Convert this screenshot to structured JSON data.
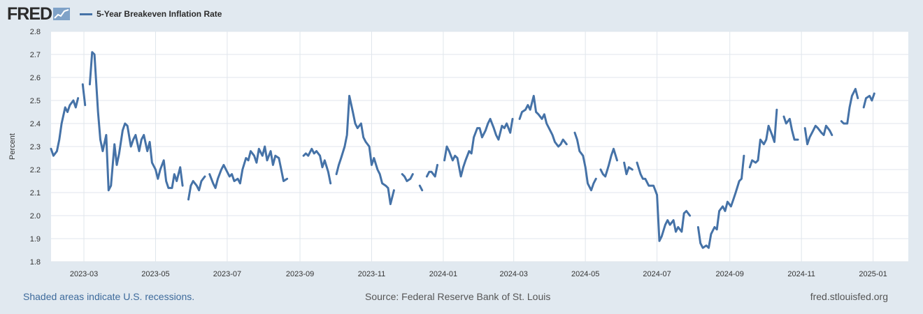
{
  "header": {
    "logo_text": "FRED",
    "logo_icon": "trend-chart-icon"
  },
  "footer": {
    "recessions_note": "Shaded areas indicate U.S. recessions.",
    "source": "Source: Federal Reserve Bank of St. Louis",
    "site": "fred.stlouisfed.org"
  },
  "colors": {
    "series": "#4572a7",
    "background": "#e1e9f0",
    "plot": "#ffffff",
    "grid": "#e0e6ec",
    "text": "#333333"
  },
  "chart_data": {
    "type": "line",
    "title": "",
    "xlabel": "",
    "ylabel": "Percent",
    "ylim": [
      1.8,
      2.8
    ],
    "yticks": [
      "1.8",
      "1.9",
      "2.0",
      "2.1",
      "2.2",
      "2.3",
      "2.4",
      "2.5",
      "2.6",
      "2.7",
      "2.8"
    ],
    "xlim": [
      "2023-02-01",
      "2025-01-31"
    ],
    "xticks": [
      "2023-03",
      "2023-05",
      "2023-07",
      "2023-09",
      "2023-11",
      "2024-01",
      "2024-03",
      "2024-05",
      "2024-07",
      "2024-09",
      "2024-11",
      "2025-01"
    ],
    "grid": true,
    "legend": "top-left",
    "series": [
      {
        "name": "5-Year Breakeven Inflation Rate",
        "color": "#4572a7",
        "points": [
          [
            "2023-02-01",
            2.29
          ],
          [
            "2023-02-03",
            2.26
          ],
          [
            "2023-02-06",
            2.28
          ],
          [
            "2023-02-08",
            2.33
          ],
          [
            "2023-02-10",
            2.4
          ],
          [
            "2023-02-13",
            2.47
          ],
          [
            "2023-02-15",
            2.45
          ],
          [
            "2023-02-17",
            2.48
          ],
          [
            "2023-02-20",
            2.5
          ],
          [
            "2023-02-22",
            2.47
          ],
          [
            "2023-02-24",
            2.51
          ],
          [
            "2023-02-28",
            2.57
          ],
          [
            "2023-03-02",
            2.48
          ],
          [
            "2023-03-06",
            2.57
          ],
          [
            "2023-03-08",
            2.71
          ],
          [
            "2023-03-10",
            2.7
          ],
          [
            "2023-03-13",
            2.45
          ],
          [
            "2023-03-15",
            2.33
          ],
          [
            "2023-03-17",
            2.28
          ],
          [
            "2023-03-20",
            2.35
          ],
          [
            "2023-03-22",
            2.11
          ],
          [
            "2023-03-24",
            2.13
          ],
          [
            "2023-03-27",
            2.31
          ],
          [
            "2023-03-29",
            2.22
          ],
          [
            "2023-03-31",
            2.27
          ],
          [
            "2023-04-03",
            2.37
          ],
          [
            "2023-04-05",
            2.4
          ],
          [
            "2023-04-07",
            2.39
          ],
          [
            "2023-04-10",
            2.3
          ],
          [
            "2023-04-12",
            2.33
          ],
          [
            "2023-04-14",
            2.35
          ],
          [
            "2023-04-17",
            2.28
          ],
          [
            "2023-04-19",
            2.33
          ],
          [
            "2023-04-21",
            2.35
          ],
          [
            "2023-04-24",
            2.28
          ],
          [
            "2023-04-26",
            2.32
          ],
          [
            "2023-04-28",
            2.23
          ],
          [
            "2023-05-01",
            2.2
          ],
          [
            "2023-05-03",
            2.16
          ],
          [
            "2023-05-05",
            2.2
          ],
          [
            "2023-05-08",
            2.24
          ],
          [
            "2023-05-10",
            2.15
          ],
          [
            "2023-05-12",
            2.12
          ],
          [
            "2023-05-15",
            2.12
          ],
          [
            "2023-05-17",
            2.18
          ],
          [
            "2023-05-19",
            2.15
          ],
          [
            "2023-05-22",
            2.21
          ],
          [
            "2023-05-24",
            2.13
          ],
          [
            "2023-05-29",
            2.07
          ],
          [
            "2023-05-31",
            2.13
          ],
          [
            "2023-06-02",
            2.15
          ],
          [
            "2023-06-05",
            2.13
          ],
          [
            "2023-06-07",
            2.11
          ],
          [
            "2023-06-09",
            2.15
          ],
          [
            "2023-06-12",
            2.17
          ],
          [
            "2023-06-16",
            2.18
          ],
          [
            "2023-06-19",
            2.14
          ],
          [
            "2023-06-21",
            2.12
          ],
          [
            "2023-06-23",
            2.16
          ],
          [
            "2023-06-26",
            2.2
          ],
          [
            "2023-06-28",
            2.22
          ],
          [
            "2023-06-30",
            2.2
          ],
          [
            "2023-07-03",
            2.17
          ],
          [
            "2023-07-05",
            2.18
          ],
          [
            "2023-07-07",
            2.15
          ],
          [
            "2023-07-10",
            2.16
          ],
          [
            "2023-07-12",
            2.14
          ],
          [
            "2023-07-14",
            2.2
          ],
          [
            "2023-07-17",
            2.25
          ],
          [
            "2023-07-19",
            2.24
          ],
          [
            "2023-07-21",
            2.28
          ],
          [
            "2023-07-24",
            2.26
          ],
          [
            "2023-07-26",
            2.23
          ],
          [
            "2023-07-28",
            2.29
          ],
          [
            "2023-07-31",
            2.26
          ],
          [
            "2023-08-02",
            2.3
          ],
          [
            "2023-08-04",
            2.24
          ],
          [
            "2023-08-07",
            2.28
          ],
          [
            "2023-08-09",
            2.22
          ],
          [
            "2023-08-11",
            2.26
          ],
          [
            "2023-08-14",
            2.25
          ],
          [
            "2023-08-16",
            2.2
          ],
          [
            "2023-08-18",
            2.15
          ],
          [
            "2023-08-21",
            2.16
          ],
          [
            "2023-08-31",
            2.22
          ],
          [
            "2023-09-04",
            2.26
          ],
          [
            "2023-09-06",
            2.27
          ],
          [
            "2023-09-08",
            2.26
          ],
          [
            "2023-09-11",
            2.29
          ],
          [
            "2023-09-13",
            2.27
          ],
          [
            "2023-09-15",
            2.28
          ],
          [
            "2023-09-18",
            2.26
          ],
          [
            "2023-09-20",
            2.21
          ],
          [
            "2023-09-22",
            2.24
          ],
          [
            "2023-09-25",
            2.19
          ],
          [
            "2023-09-27",
            2.14
          ],
          [
            "2023-10-02",
            2.18
          ],
          [
            "2023-10-04",
            2.22
          ],
          [
            "2023-10-06",
            2.25
          ],
          [
            "2023-10-09",
            2.3
          ],
          [
            "2023-10-11",
            2.35
          ],
          [
            "2023-10-13",
            2.52
          ],
          [
            "2023-10-16",
            2.45
          ],
          [
            "2023-10-18",
            2.4
          ],
          [
            "2023-10-20",
            2.38
          ],
          [
            "2023-10-23",
            2.4
          ],
          [
            "2023-10-25",
            2.34
          ],
          [
            "2023-10-27",
            2.32
          ],
          [
            "2023-10-30",
            2.3
          ],
          [
            "2023-11-01",
            2.22
          ],
          [
            "2023-11-03",
            2.25
          ],
          [
            "2023-11-06",
            2.2
          ],
          [
            "2023-11-08",
            2.18
          ],
          [
            "2023-11-10",
            2.14
          ],
          [
            "2023-11-13",
            2.13
          ],
          [
            "2023-11-15",
            2.12
          ],
          [
            "2023-11-17",
            2.05
          ],
          [
            "2023-11-20",
            2.11
          ],
          [
            "2023-11-27",
            2.18
          ],
          [
            "2023-11-29",
            2.17
          ],
          [
            "2023-12-01",
            2.15
          ],
          [
            "2023-12-04",
            2.16
          ],
          [
            "2023-12-06",
            2.18
          ],
          [
            "2023-12-12",
            2.13
          ],
          [
            "2023-12-14",
            2.11
          ],
          [
            "2023-12-18",
            2.17
          ],
          [
            "2023-12-20",
            2.19
          ],
          [
            "2023-12-22",
            2.19
          ],
          [
            "2023-12-25",
            2.17
          ],
          [
            "2023-12-27",
            2.22
          ],
          [
            "2024-01-02",
            2.24
          ],
          [
            "2024-01-04",
            2.3
          ],
          [
            "2024-01-06",
            2.28
          ],
          [
            "2024-01-09",
            2.24
          ],
          [
            "2024-01-11",
            2.26
          ],
          [
            "2024-01-13",
            2.25
          ],
          [
            "2024-01-16",
            2.17
          ],
          [
            "2024-01-18",
            2.21
          ],
          [
            "2024-01-20",
            2.24
          ],
          [
            "2024-01-23",
            2.28
          ],
          [
            "2024-01-25",
            2.27
          ],
          [
            "2024-01-27",
            2.34
          ],
          [
            "2024-01-30",
            2.38
          ],
          [
            "2024-02-01",
            2.38
          ],
          [
            "2024-02-03",
            2.34
          ],
          [
            "2024-02-06",
            2.37
          ],
          [
            "2024-02-08",
            2.4
          ],
          [
            "2024-02-10",
            2.42
          ],
          [
            "2024-02-13",
            2.38
          ],
          [
            "2024-02-15",
            2.35
          ],
          [
            "2024-02-17",
            2.33
          ],
          [
            "2024-02-20",
            2.39
          ],
          [
            "2024-02-22",
            2.38
          ],
          [
            "2024-02-24",
            2.4
          ],
          [
            "2024-02-27",
            2.36
          ],
          [
            "2024-02-29",
            2.42
          ],
          [
            "2024-03-06",
            2.42
          ],
          [
            "2024-03-08",
            2.45
          ],
          [
            "2024-03-11",
            2.46
          ],
          [
            "2024-03-13",
            2.48
          ],
          [
            "2024-03-15",
            2.46
          ],
          [
            "2024-03-18",
            2.52
          ],
          [
            "2024-03-20",
            2.45
          ],
          [
            "2024-03-22",
            2.44
          ],
          [
            "2024-03-25",
            2.42
          ],
          [
            "2024-03-27",
            2.44
          ],
          [
            "2024-03-29",
            2.4
          ],
          [
            "2024-04-01",
            2.37
          ],
          [
            "2024-04-03",
            2.35
          ],
          [
            "2024-04-05",
            2.32
          ],
          [
            "2024-04-08",
            2.3
          ],
          [
            "2024-04-10",
            2.31
          ],
          [
            "2024-04-12",
            2.33
          ],
          [
            "2024-04-15",
            2.31
          ],
          [
            "2024-04-22",
            2.36
          ],
          [
            "2024-04-24",
            2.33
          ],
          [
            "2024-04-26",
            2.28
          ],
          [
            "2024-04-29",
            2.26
          ],
          [
            "2024-05-01",
            2.21
          ],
          [
            "2024-05-03",
            2.14
          ],
          [
            "2024-05-06",
            2.11
          ],
          [
            "2024-05-08",
            2.14
          ],
          [
            "2024-05-10",
            2.16
          ],
          [
            "2024-05-14",
            2.2
          ],
          [
            "2024-05-16",
            2.18
          ],
          [
            "2024-05-18",
            2.17
          ],
          [
            "2024-05-21",
            2.22
          ],
          [
            "2024-05-23",
            2.26
          ],
          [
            "2024-05-25",
            2.29
          ],
          [
            "2024-05-28",
            2.24
          ],
          [
            "2024-06-03",
            2.23
          ],
          [
            "2024-06-05",
            2.18
          ],
          [
            "2024-06-07",
            2.21
          ],
          [
            "2024-06-10",
            2.2
          ],
          [
            "2024-06-14",
            2.23
          ],
          [
            "2024-06-17",
            2.18
          ],
          [
            "2024-06-19",
            2.16
          ],
          [
            "2024-06-21",
            2.16
          ],
          [
            "2024-06-24",
            2.13
          ],
          [
            "2024-06-26",
            2.13
          ],
          [
            "2024-06-28",
            2.13
          ],
          [
            "2024-07-01",
            2.09
          ],
          [
            "2024-07-03",
            1.89
          ],
          [
            "2024-07-05",
            1.91
          ],
          [
            "2024-07-08",
            1.96
          ],
          [
            "2024-07-10",
            1.98
          ],
          [
            "2024-07-12",
            1.96
          ],
          [
            "2024-07-15",
            1.98
          ],
          [
            "2024-07-17",
            1.93
          ],
          [
            "2024-07-19",
            1.95
          ],
          [
            "2024-07-22",
            1.93
          ],
          [
            "2024-07-24",
            2.01
          ],
          [
            "2024-07-26",
            2.02
          ],
          [
            "2024-07-29",
            2.0
          ],
          [
            "2024-08-05",
            1.95
          ],
          [
            "2024-08-07",
            1.88
          ],
          [
            "2024-08-09",
            1.86
          ],
          [
            "2024-08-12",
            1.87
          ],
          [
            "2024-08-14",
            1.86
          ],
          [
            "2024-08-16",
            1.92
          ],
          [
            "2024-08-19",
            1.95
          ],
          [
            "2024-08-21",
            1.94
          ],
          [
            "2024-08-23",
            2.02
          ],
          [
            "2024-08-26",
            2.04
          ],
          [
            "2024-08-28",
            2.02
          ],
          [
            "2024-08-30",
            2.06
          ],
          [
            "2024-09-02",
            2.04
          ],
          [
            "2024-09-04",
            2.07
          ],
          [
            "2024-09-06",
            2.1
          ],
          [
            "2024-09-09",
            2.15
          ],
          [
            "2024-09-11",
            2.16
          ],
          [
            "2024-09-13",
            2.26
          ],
          [
            "2024-09-18",
            2.21
          ],
          [
            "2024-09-20",
            2.24
          ],
          [
            "2024-09-23",
            2.23
          ],
          [
            "2024-09-25",
            2.24
          ],
          [
            "2024-09-27",
            2.33
          ],
          [
            "2024-09-30",
            2.31
          ],
          [
            "2024-10-02",
            2.33
          ],
          [
            "2024-10-04",
            2.39
          ],
          [
            "2024-10-07",
            2.35
          ],
          [
            "2024-10-09",
            2.32
          ],
          [
            "2024-10-11",
            2.46
          ],
          [
            "2024-10-17",
            2.43
          ],
          [
            "2024-10-19",
            2.4
          ],
          [
            "2024-10-22",
            2.42
          ],
          [
            "2024-10-24",
            2.37
          ],
          [
            "2024-10-26",
            2.33
          ],
          [
            "2024-10-29",
            2.33
          ],
          [
            "2024-11-04",
            2.38
          ],
          [
            "2024-11-06",
            2.31
          ],
          [
            "2024-11-08",
            2.34
          ],
          [
            "2024-11-11",
            2.37
          ],
          [
            "2024-11-13",
            2.39
          ],
          [
            "2024-11-15",
            2.38
          ],
          [
            "2024-11-18",
            2.36
          ],
          [
            "2024-11-20",
            2.35
          ],
          [
            "2024-11-22",
            2.39
          ],
          [
            "2024-11-25",
            2.37
          ],
          [
            "2024-11-27",
            2.35
          ],
          [
            "2024-12-05",
            2.41
          ],
          [
            "2024-12-07",
            2.4
          ],
          [
            "2024-12-10",
            2.4
          ],
          [
            "2024-12-12",
            2.47
          ],
          [
            "2024-12-14",
            2.52
          ],
          [
            "2024-12-17",
            2.55
          ],
          [
            "2024-12-19",
            2.51
          ],
          [
            "2024-12-24",
            2.47
          ],
          [
            "2024-12-26",
            2.51
          ],
          [
            "2024-12-29",
            2.52
          ],
          [
            "2024-12-31",
            2.5
          ],
          [
            "2025-01-02",
            2.53
          ]
        ]
      }
    ]
  }
}
